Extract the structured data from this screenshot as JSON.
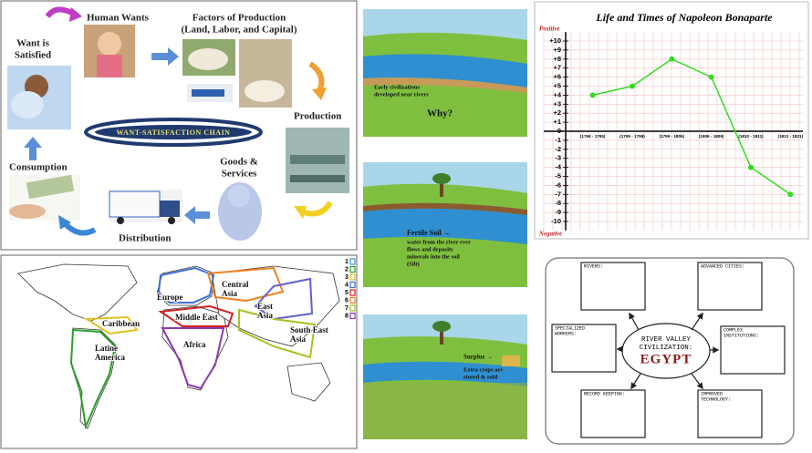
{
  "want_chain": {
    "title": "WANT-SATISFACTION CHAIN",
    "human_wants": "Human Wants",
    "factors": [
      "Factors of Production",
      "(Land, Labor, and Capital)"
    ],
    "satisfied": [
      "Want is",
      "Satisfied"
    ],
    "production": "Production",
    "goods": [
      "Goods &",
      "Services"
    ],
    "consumption": "Consumption",
    "distribution": "Distribution"
  },
  "river_panels": [
    {
      "text": [
        "Early civilizations",
        "developed near rivers"
      ],
      "question": "Why?"
    },
    {
      "heading": "Fertile Soil →",
      "text": [
        "water from the river ever",
        "flows and deposits",
        "minerals into the soil",
        "(Silt)"
      ]
    },
    {
      "heading": "Surplus →",
      "text": [
        "Extra crops are",
        "stored & sold"
      ]
    }
  ],
  "chart_data": {
    "type": "line",
    "title": "Life and Times of Napoleon Bonaparte",
    "top_label": "Positive",
    "bottom_label": "Negative",
    "categories": [
      "(1769 - 1795)",
      "(1795 - 1798)",
      "(1799 - 1805)",
      "(1806 - 1809)",
      "(1810 - 1811)",
      "(1812 - 1821)"
    ],
    "values": [
      4,
      5,
      8,
      6,
      -4,
      -7
    ],
    "color": "#33dd22",
    "ylim": [
      -11,
      11
    ],
    "yticks": [
      {
        "value": 10,
        "label": "+10"
      },
      {
        "value": 9,
        "label": "+9"
      },
      {
        "value": 8,
        "label": "+8"
      },
      {
        "value": 7,
        "label": "+7"
      },
      {
        "value": 6,
        "label": "+6"
      },
      {
        "value": 5,
        "label": "+5"
      },
      {
        "value": 4,
        "label": "+4"
      },
      {
        "value": 3,
        "label": "+3"
      },
      {
        "value": 2,
        "label": "+2"
      },
      {
        "value": 1,
        "label": "+1"
      },
      0,
      -1,
      -2,
      -3,
      -4,
      -5,
      -6,
      -7,
      -8,
      -9,
      -10
    ],
    "grid": true
  },
  "map": {
    "regions": [
      {
        "label": [
          "Caribbean"
        ]
      },
      {
        "label": [
          "Latine",
          "America"
        ]
      },
      {
        "label": [
          "Europe"
        ]
      },
      {
        "label": [
          "Middle East"
        ]
      },
      {
        "label": [
          "Africa"
        ]
      },
      {
        "label": [
          "Central",
          "Asia"
        ]
      },
      {
        "label": [
          "East",
          "Asia"
        ]
      },
      {
        "label": [
          "South East",
          "Asia"
        ]
      }
    ],
    "legend": [
      "1",
      "2",
      "3",
      "4",
      "5",
      "6",
      "7",
      "8"
    ]
  },
  "organizer": {
    "center": [
      "RIVER VALLEY",
      "CIVILIZATION:"
    ],
    "answer": "EGYPT",
    "boxes": [
      {
        "label": [
          "RIVERS:"
        ]
      },
      {
        "label": [
          "ADVANCED CITIES:"
        ]
      },
      {
        "label": [
          "SPECIALIZED",
          "WORKERS:"
        ]
      },
      {
        "label": [
          "COMPLEX",
          "INSTITUTIONS:"
        ]
      },
      {
        "label": [
          "RECORD KEEPING:"
        ]
      },
      {
        "label": [
          "IMPROVED",
          "TECHNOLOGY:"
        ]
      }
    ]
  }
}
